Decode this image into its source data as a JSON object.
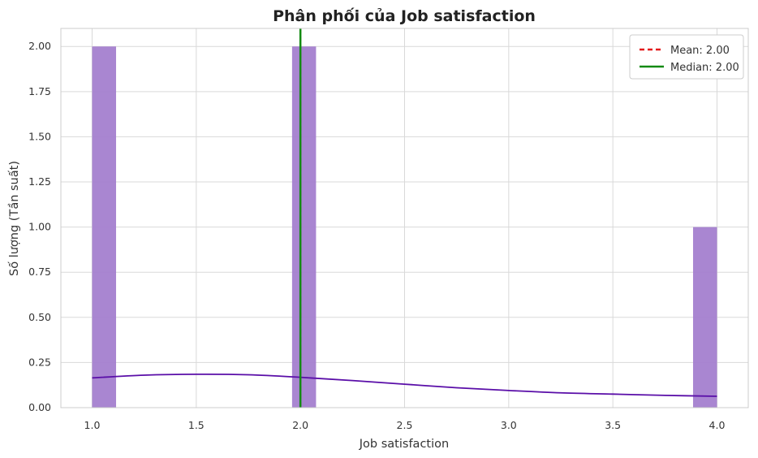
{
  "chart_data": {
    "type": "histogram",
    "title": "Phân phối của Job satisfaction",
    "xlabel": "Job satisfaction",
    "ylabel": "Số lượng (Tần suất)",
    "xlim": [
      0.85,
      4.15
    ],
    "ylim": [
      0,
      2.1
    ],
    "x_ticks": [
      1.0,
      1.5,
      2.0,
      2.5,
      3.0,
      3.5,
      4.0
    ],
    "x_tick_labels": [
      "1.0",
      "1.5",
      "2.0",
      "2.5",
      "3.0",
      "3.5",
      "4.0"
    ],
    "y_ticks": [
      0,
      0.25,
      0.5,
      0.75,
      1.0,
      1.25,
      1.5,
      1.75,
      2.0
    ],
    "y_tick_labels": [
      "0.00",
      "0.25",
      "0.50",
      "0.75",
      "1.00",
      "1.25",
      "1.50",
      "1.75",
      "2.00"
    ],
    "grid": true,
    "bar_color": "#a47fcf",
    "bars": [
      {
        "x0": 1.0,
        "x1": 1.115,
        "count": 2
      },
      {
        "x0": 1.96,
        "x1": 2.075,
        "count": 2
      },
      {
        "x0": 3.885,
        "x1": 4.0,
        "count": 1
      }
    ],
    "kde": {
      "color": "#5a0ea8",
      "x": [
        1.0,
        1.25,
        1.5,
        1.75,
        2.0,
        2.25,
        2.5,
        2.75,
        3.0,
        3.25,
        3.5,
        3.75,
        4.0
      ],
      "y": [
        0.165,
        0.18,
        0.185,
        0.182,
        0.168,
        0.15,
        0.13,
        0.11,
        0.095,
        0.082,
        0.075,
        0.068,
        0.063
      ]
    },
    "mean": {
      "value": 2.0,
      "label": "Mean: 2.00",
      "color": "#e31a1c",
      "style": "dashed"
    },
    "median": {
      "value": 2.0,
      "label": "Median: 2.00",
      "color": "#138a13",
      "style": "solid"
    },
    "legend_position": "top-right"
  }
}
